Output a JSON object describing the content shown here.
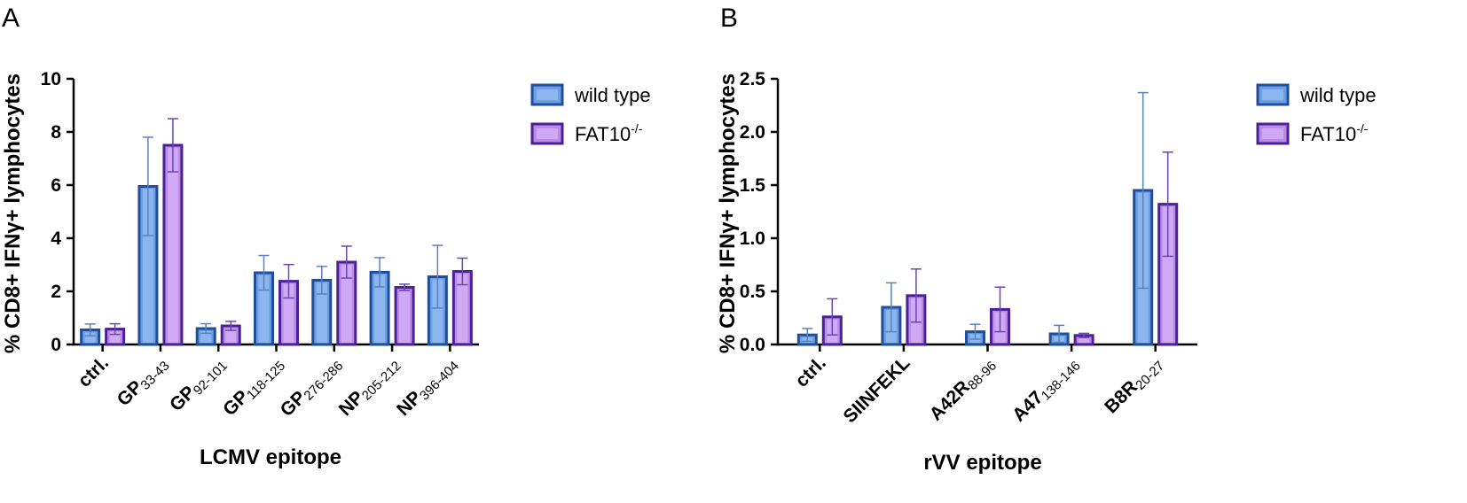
{
  "colors": {
    "wild_type_fill": "#6d9de2",
    "wild_type_inner": "#8cb6ee",
    "wild_type_edge": "#1f4e9a",
    "fat10_fill": "#b98ae8",
    "fat10_inner": "#cfa9f3",
    "fat10_edge": "#4b2196",
    "error_wt": "#5a82c2",
    "error_fat": "#6a46b0",
    "axis": "#000000"
  },
  "chart_data": [
    {
      "type": "bar",
      "panel_letter": "A",
      "title": "",
      "xlabel": "LCMV epitope",
      "ylabel": "% CD8+ IFNγ+ lymphocytes",
      "ylim": [
        0,
        10
      ],
      "yticks": [
        "0",
        "2",
        "4",
        "6",
        "8",
        "10"
      ],
      "ytick_values": [
        0,
        2,
        4,
        6,
        8,
        10
      ],
      "categories": [
        {
          "main": "ctrl.",
          "sub": ""
        },
        {
          "main": "GP",
          "sub": "33-43"
        },
        {
          "main": "GP",
          "sub": "92-101"
        },
        {
          "main": "GP",
          "sub": "118-125"
        },
        {
          "main": "GP",
          "sub": "276-286"
        },
        {
          "main": "NP",
          "sub": "205-212"
        },
        {
          "main": "NP",
          "sub": "396-404"
        }
      ],
      "series": [
        {
          "name": "wild type",
          "values": [
            0.55,
            5.95,
            0.6,
            2.7,
            2.42,
            2.72,
            2.55
          ],
          "error": [
            0.22,
            1.85,
            0.18,
            0.65,
            0.52,
            0.55,
            1.18
          ]
        },
        {
          "name": "FAT10",
          "name_sup": "-/-",
          "values": [
            0.58,
            7.5,
            0.7,
            2.38,
            3.1,
            2.15,
            2.75
          ],
          "error": [
            0.2,
            1.0,
            0.17,
            0.63,
            0.6,
            0.12,
            0.5
          ]
        }
      ],
      "legend_position": "top-right"
    },
    {
      "type": "bar",
      "panel_letter": "B",
      "title": "",
      "xlabel": "rVV epitope",
      "ylabel": "% CD8+ IFNγ+ lymphocytes",
      "ylim": [
        0,
        2.5
      ],
      "yticks": [
        "0.0",
        "0.5",
        "1.0",
        "1.5",
        "2.0",
        "2.5"
      ],
      "ytick_values": [
        0,
        0.5,
        1.0,
        1.5,
        2.0,
        2.5
      ],
      "categories": [
        {
          "main": "ctrl.",
          "sub": ""
        },
        {
          "main": "SIINFEKL",
          "sub": ""
        },
        {
          "main": "A42R",
          "sub": "88-96"
        },
        {
          "main": "A47",
          "sub": "138-146"
        },
        {
          "main": "B8R",
          "sub": "20-27"
        }
      ],
      "series": [
        {
          "name": "wild type",
          "values": [
            0.09,
            0.35,
            0.12,
            0.1,
            1.45
          ],
          "error": [
            0.06,
            0.23,
            0.07,
            0.08,
            0.92
          ]
        },
        {
          "name": "FAT10",
          "name_sup": "-/-",
          "values": [
            0.26,
            0.46,
            0.33,
            0.085,
            1.32
          ],
          "error": [
            0.17,
            0.25,
            0.21,
            0.02,
            0.49
          ]
        }
      ],
      "legend_position": "top-right"
    }
  ]
}
